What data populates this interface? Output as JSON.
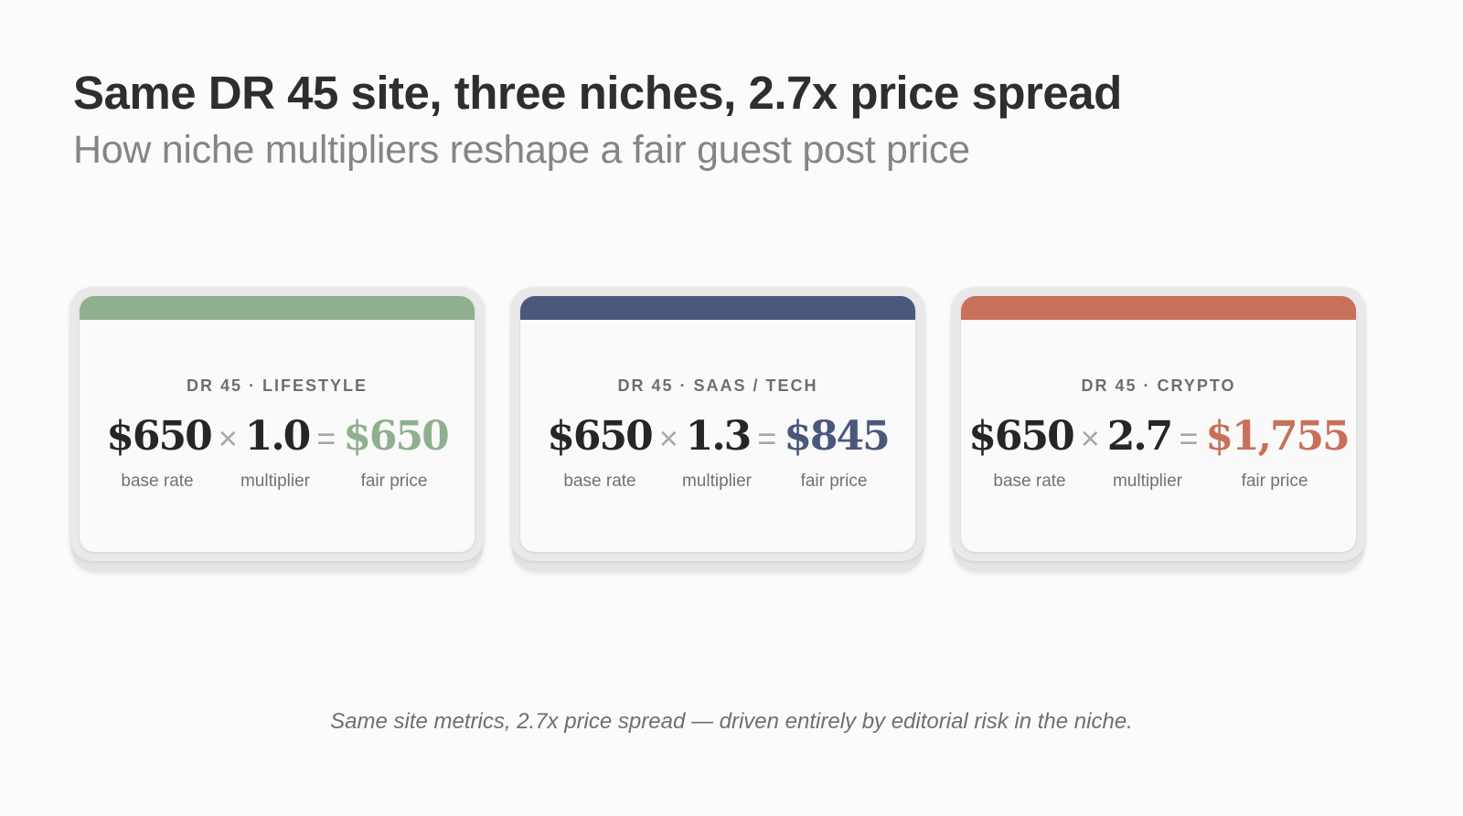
{
  "header": {
    "title": "Same DR 45 site, three niches, 2.7x price spread",
    "subtitle": "How niche multipliers reshape a fair guest post price"
  },
  "operators": {
    "times": "×",
    "equals": "="
  },
  "cards": [
    {
      "label": "DR 45 · LIFESTYLE",
      "base_rate": "$650",
      "multiplier": "1.0",
      "fair_price": "$650",
      "accent_color": "#8fb08f",
      "captions": {
        "base": "base rate",
        "multiplier": "multiplier",
        "fair": "fair price"
      }
    },
    {
      "label": "DR 45 · SAAS / TECH",
      "base_rate": "$650",
      "multiplier": "1.3",
      "fair_price": "$845",
      "accent_color": "#4b587c",
      "captions": {
        "base": "base rate",
        "multiplier": "multiplier",
        "fair": "fair price"
      }
    },
    {
      "label": "DR 45 · CRYPTO",
      "base_rate": "$650",
      "multiplier": "2.7",
      "fair_price": "$1,755",
      "accent_color": "#c8705a",
      "captions": {
        "base": "base rate",
        "multiplier": "multiplier",
        "fair": "fair price"
      }
    }
  ],
  "footnote": "Same site metrics, 2.7x price spread — driven entirely by editorial risk in the niche."
}
